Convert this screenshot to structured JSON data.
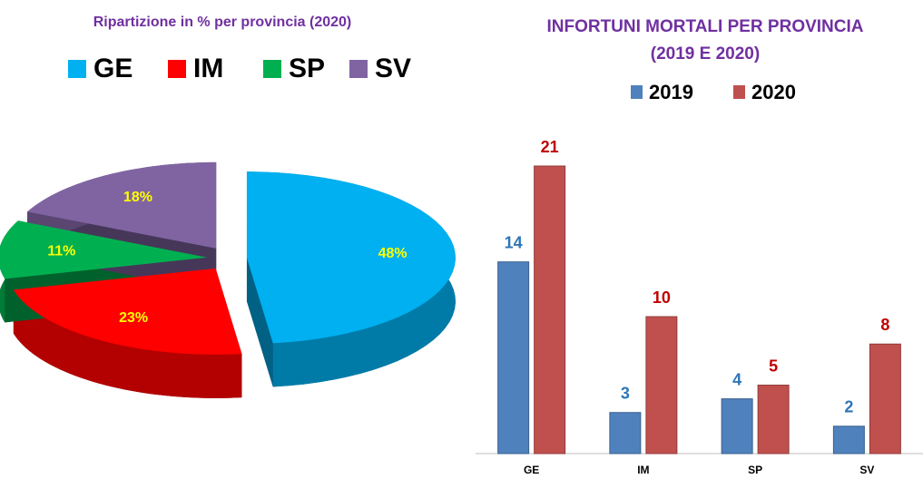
{
  "chart_data": [
    {
      "type": "pie",
      "title": "Ripartizione in % per provincia (2020)",
      "categories": [
        "GE",
        "IM",
        "SP",
        "SV"
      ],
      "values": [
        48,
        23,
        11,
        18
      ],
      "value_labels": [
        "48%",
        "23%",
        "11%",
        "18%"
      ],
      "colors": [
        "#00b0f0",
        "#ff0000",
        "#00b050",
        "#8064a2"
      ]
    },
    {
      "type": "bar",
      "title": [
        "INFORTUNI MORTALI PER PROVINCIA",
        "(2019 E 2020)"
      ],
      "categories": [
        "GE",
        "IM",
        "SP",
        "SV"
      ],
      "series": [
        {
          "name": "2019",
          "color": "#4f81bd",
          "label_color": "#2e75b6",
          "values": [
            14,
            3,
            4,
            2
          ]
        },
        {
          "name": "2020",
          "color": "#c0504d",
          "label_color": "#c00000",
          "values": [
            21,
            10,
            5,
            8
          ]
        }
      ],
      "ylim": [
        0,
        21
      ]
    }
  ]
}
